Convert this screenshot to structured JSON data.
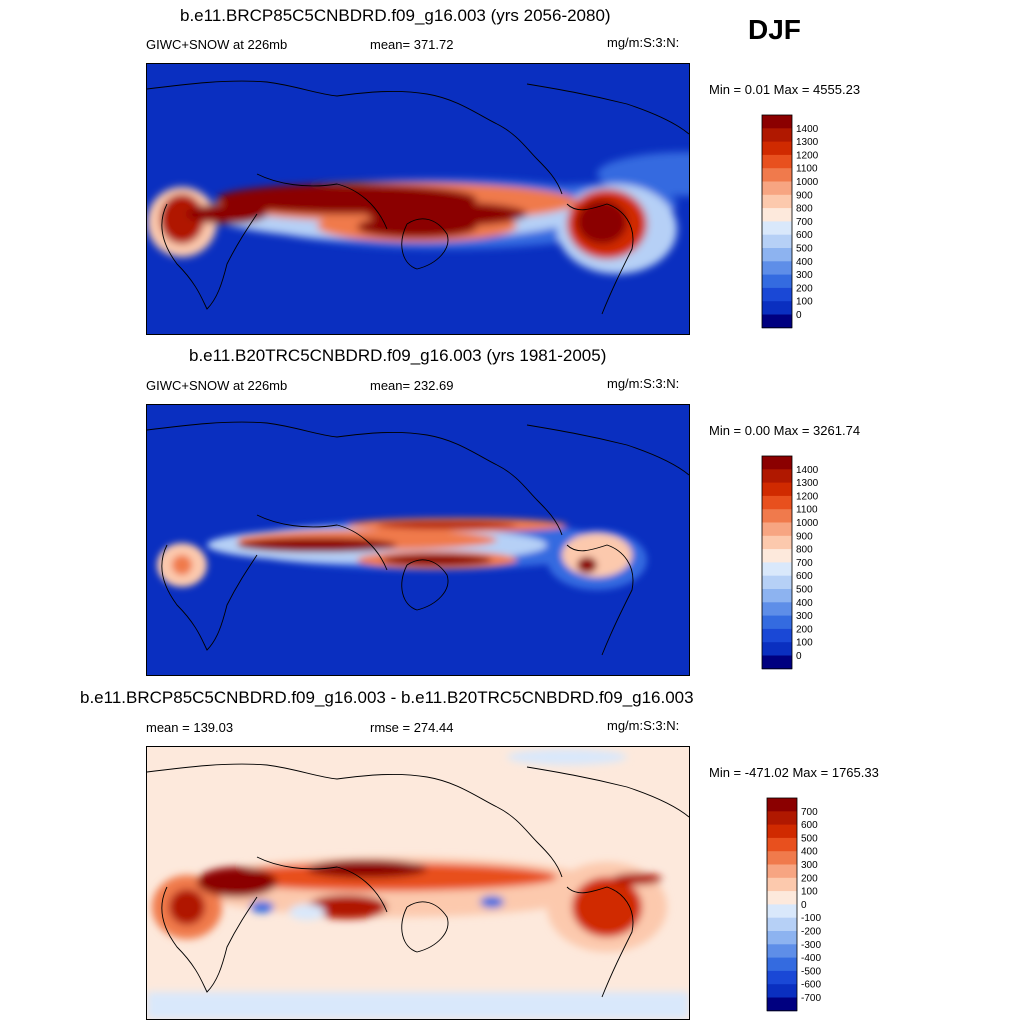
{
  "season": "DJF",
  "panels": [
    {
      "title": "b.e11.BRCP85C5CNBDRD.f09_g16.003 (yrs 2056-2080)",
      "left_label": "GIWC+SNOW at 226mb",
      "mid_label": "mean= 371.72",
      "units": "mg/m:S:3:N:",
      "minmax": "Min =   0.01 Max = 4555.23",
      "levels": [
        "1400",
        "1300",
        "1200",
        "1100",
        "1000",
        "900",
        "800",
        "700",
        "600",
        "500",
        "400",
        "300",
        "200",
        "100",
        "0"
      ]
    },
    {
      "title": "b.e11.B20TRC5CNBDRD.f09_g16.003 (yrs 1981-2005)",
      "left_label": "GIWC+SNOW at 226mb",
      "mid_label": "mean= 232.69",
      "units": "mg/m:S:3:N:",
      "minmax": "Min =   0.00 Max = 3261.74",
      "levels": [
        "1400",
        "1300",
        "1200",
        "1100",
        "1000",
        "900",
        "800",
        "700",
        "600",
        "500",
        "400",
        "300",
        "200",
        "100",
        "0"
      ]
    },
    {
      "title": "b.e11.BRCP85C5CNBDRD.f09_g16.003 - b.e11.B20TRC5CNBDRD.f09_g16.003",
      "left_label": "mean = 139.03",
      "mid_label": "rmse = 274.44",
      "units": "mg/m:S:3:N:",
      "minmax": "Min = -471.02 Max = 1765.33",
      "levels": [
        "700",
        "600",
        "500",
        "400",
        "300",
        "200",
        "100",
        "0",
        "-100",
        "-200",
        "-300",
        "-400",
        "-500",
        "-600",
        "-700"
      ]
    }
  ],
  "colors": {
    "seq": [
      "#8b0000",
      "#b01800",
      "#d02a00",
      "#e8501e",
      "#f07a4c",
      "#f7a582",
      "#fcc9ad",
      "#fde9dc",
      "#d9e8fb",
      "#b6d0f6",
      "#8db3f0",
      "#5e8ee8",
      "#346be0",
      "#1a48d6",
      "#0a2fc0",
      "#000080"
    ],
    "div": [
      "#8b0000",
      "#b01800",
      "#d02a00",
      "#e8501e",
      "#f07a4c",
      "#f7a582",
      "#fcc9ad",
      "#fde9dc",
      "#d9e8fb",
      "#b6d0f6",
      "#8db3f0",
      "#5e8ee8",
      "#346be0",
      "#1a48d6",
      "#0a2fc0",
      "#000080"
    ]
  }
}
